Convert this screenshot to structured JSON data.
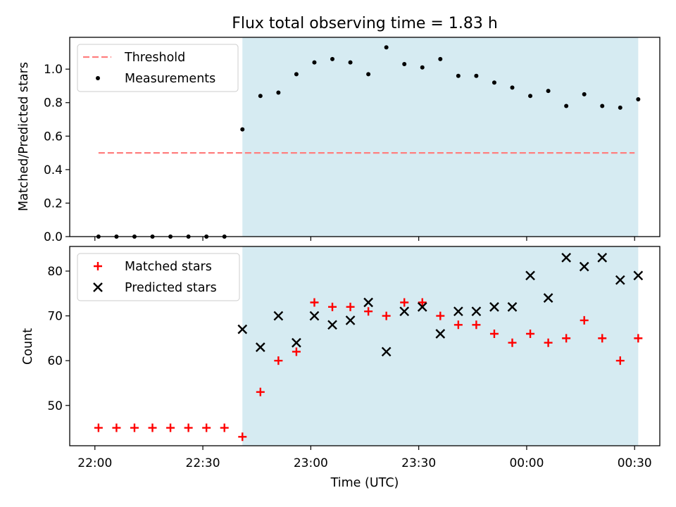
{
  "title": "Flux total observing time = 1.83 h",
  "colors": {
    "threshold": "#ff7f7f",
    "measurements": "#000000",
    "matched": "#ff0000",
    "predicted": "#000000",
    "observing_span": "#add8e6"
  },
  "chart_data": [
    {
      "type": "scatter",
      "panel": "top",
      "title": "Flux total observing time = 1.83 h",
      "xlabel": "",
      "ylabel": "Matched/Predicted stars",
      "xlim": [
        "21:53",
        "00:37"
      ],
      "ylim": [
        0,
        1.19
      ],
      "yticks": [
        "0.0",
        "0.2",
        "0.4",
        "0.6",
        "0.8",
        "1.0"
      ],
      "legend": {
        "position": "top-left",
        "entries": [
          "Threshold",
          "Measurements"
        ]
      },
      "shaded_span": {
        "x": [
          "22:41",
          "00:31"
        ]
      },
      "series": [
        {
          "name": "Threshold",
          "style": "dashed-line",
          "points": [
            {
              "x": "22:01",
              "y": 0.5
            },
            {
              "x": "00:30",
              "y": 0.5
            }
          ]
        },
        {
          "name": "Measurements",
          "style": "dot",
          "points": [
            {
              "x": "22:01",
              "y": 0.0
            },
            {
              "x": "22:06",
              "y": 0.0
            },
            {
              "x": "22:11",
              "y": 0.0
            },
            {
              "x": "22:16",
              "y": 0.0
            },
            {
              "x": "22:21",
              "y": 0.0
            },
            {
              "x": "22:26",
              "y": 0.0
            },
            {
              "x": "22:31",
              "y": 0.0
            },
            {
              "x": "22:36",
              "y": 0.0
            },
            {
              "x": "22:41",
              "y": 0.64
            },
            {
              "x": "22:46",
              "y": 0.84
            },
            {
              "x": "22:51",
              "y": 0.86
            },
            {
              "x": "22:56",
              "y": 0.97
            },
            {
              "x": "23:01",
              "y": 1.04
            },
            {
              "x": "23:06",
              "y": 1.06
            },
            {
              "x": "23:11",
              "y": 1.04
            },
            {
              "x": "23:16",
              "y": 0.97
            },
            {
              "x": "23:21",
              "y": 1.13
            },
            {
              "x": "23:26",
              "y": 1.03
            },
            {
              "x": "23:31",
              "y": 1.01
            },
            {
              "x": "23:36",
              "y": 1.06
            },
            {
              "x": "23:41",
              "y": 0.96
            },
            {
              "x": "23:46",
              "y": 0.96
            },
            {
              "x": "23:51",
              "y": 0.92
            },
            {
              "x": "23:56",
              "y": 0.89
            },
            {
              "x": "00:01",
              "y": 0.84
            },
            {
              "x": "00:06",
              "y": 0.87
            },
            {
              "x": "00:11",
              "y": 0.78
            },
            {
              "x": "00:16",
              "y": 0.85
            },
            {
              "x": "00:21",
              "y": 0.78
            },
            {
              "x": "00:26",
              "y": 0.77
            },
            {
              "x": "00:31",
              "y": 0.82
            }
          ]
        }
      ]
    },
    {
      "type": "scatter",
      "panel": "bottom",
      "xlabel": "Time (UTC)",
      "ylabel": "Count",
      "xlim": [
        "21:53",
        "00:37"
      ],
      "ylim": [
        41,
        85.5
      ],
      "xticks": [
        "22:00",
        "22:30",
        "23:00",
        "23:30",
        "00:00",
        "00:30"
      ],
      "yticks": [
        "50",
        "60",
        "70",
        "80"
      ],
      "legend": {
        "position": "top-left",
        "entries": [
          "Matched stars",
          "Predicted stars"
        ]
      },
      "shaded_span": {
        "x": [
          "22:41",
          "00:31"
        ]
      },
      "series": [
        {
          "name": "Matched stars",
          "style": "plus",
          "points": [
            {
              "x": "22:01",
              "y": 45
            },
            {
              "x": "22:06",
              "y": 45
            },
            {
              "x": "22:11",
              "y": 45
            },
            {
              "x": "22:16",
              "y": 45
            },
            {
              "x": "22:21",
              "y": 45
            },
            {
              "x": "22:26",
              "y": 45
            },
            {
              "x": "22:31",
              "y": 45
            },
            {
              "x": "22:36",
              "y": 45
            },
            {
              "x": "22:41",
              "y": 43
            },
            {
              "x": "22:46",
              "y": 53
            },
            {
              "x": "22:51",
              "y": 60
            },
            {
              "x": "22:56",
              "y": 62
            },
            {
              "x": "23:01",
              "y": 73
            },
            {
              "x": "23:06",
              "y": 72
            },
            {
              "x": "23:11",
              "y": 72
            },
            {
              "x": "23:16",
              "y": 71
            },
            {
              "x": "23:21",
              "y": 70
            },
            {
              "x": "23:26",
              "y": 73
            },
            {
              "x": "23:31",
              "y": 73
            },
            {
              "x": "23:36",
              "y": 70
            },
            {
              "x": "23:41",
              "y": 68
            },
            {
              "x": "23:46",
              "y": 68
            },
            {
              "x": "23:51",
              "y": 66
            },
            {
              "x": "23:56",
              "y": 64
            },
            {
              "x": "00:01",
              "y": 66
            },
            {
              "x": "00:06",
              "y": 64
            },
            {
              "x": "00:11",
              "y": 65
            },
            {
              "x": "00:16",
              "y": 69
            },
            {
              "x": "00:21",
              "y": 65
            },
            {
              "x": "00:26",
              "y": 60
            },
            {
              "x": "00:31",
              "y": 65
            }
          ]
        },
        {
          "name": "Predicted stars",
          "style": "x",
          "points": [
            {
              "x": "22:41",
              "y": 67
            },
            {
              "x": "22:46",
              "y": 63
            },
            {
              "x": "22:51",
              "y": 70
            },
            {
              "x": "22:56",
              "y": 64
            },
            {
              "x": "23:01",
              "y": 70
            },
            {
              "x": "23:06",
              "y": 68
            },
            {
              "x": "23:11",
              "y": 69
            },
            {
              "x": "23:16",
              "y": 73
            },
            {
              "x": "23:21",
              "y": 62
            },
            {
              "x": "23:26",
              "y": 71
            },
            {
              "x": "23:31",
              "y": 72
            },
            {
              "x": "23:36",
              "y": 66
            },
            {
              "x": "23:41",
              "y": 71
            },
            {
              "x": "23:46",
              "y": 71
            },
            {
              "x": "23:51",
              "y": 72
            },
            {
              "x": "23:56",
              "y": 72
            },
            {
              "x": "00:01",
              "y": 79
            },
            {
              "x": "00:06",
              "y": 74
            },
            {
              "x": "00:11",
              "y": 83
            },
            {
              "x": "00:16",
              "y": 81
            },
            {
              "x": "00:21",
              "y": 83
            },
            {
              "x": "00:26",
              "y": 78
            },
            {
              "x": "00:31",
              "y": 79
            }
          ]
        }
      ]
    }
  ]
}
